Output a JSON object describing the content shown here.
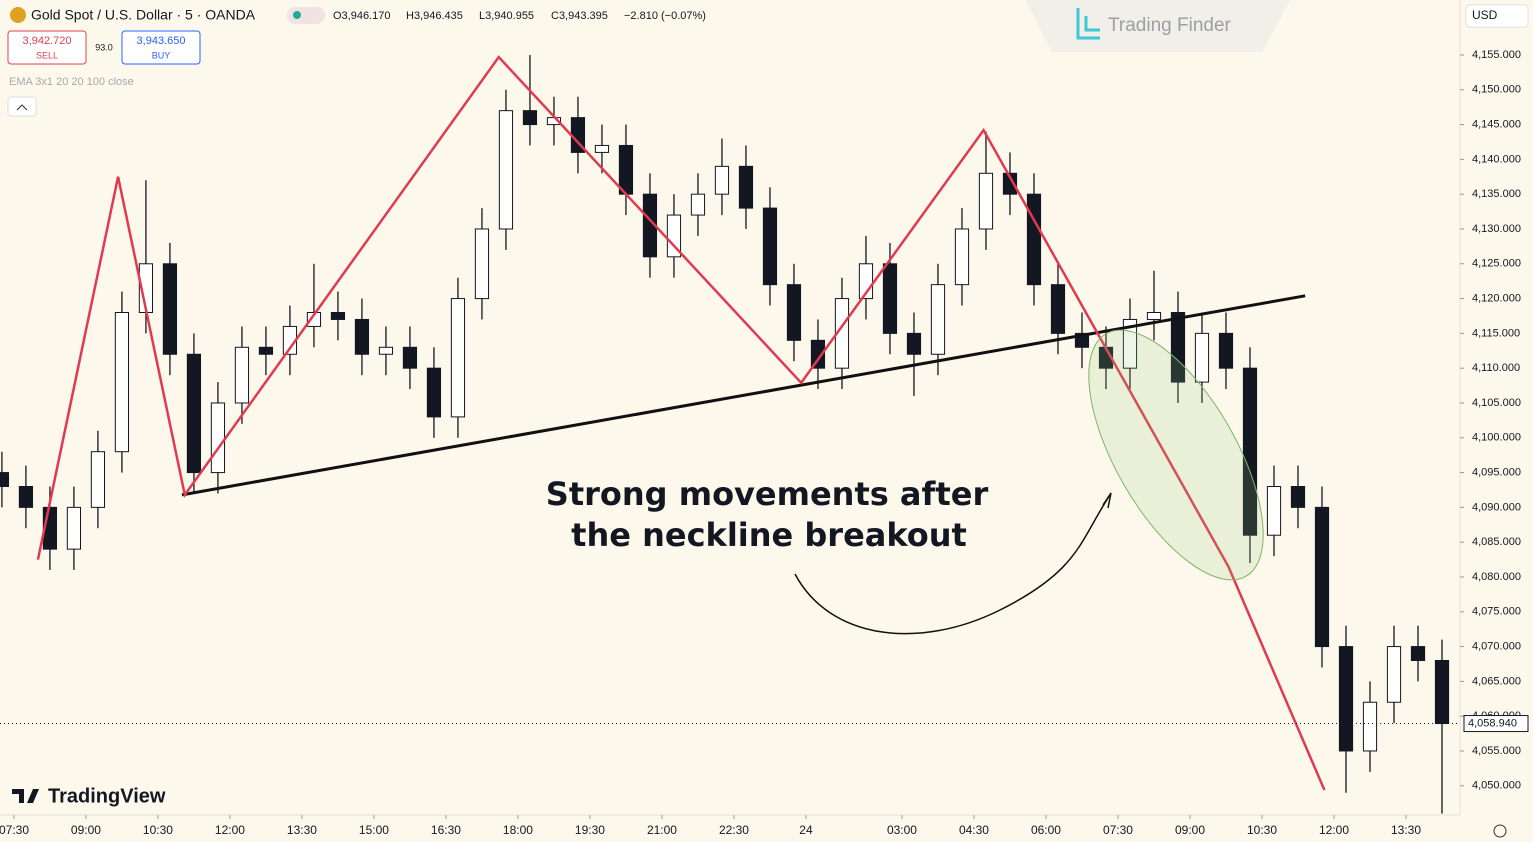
{
  "header": {
    "symbol": "Gold Spot / U.S. Dollar · 5 · OANDA",
    "open": "O3,946.170",
    "high": "H3,946.435",
    "low": "L3,940.955",
    "close": "C3,943.395",
    "change": "−2.810 (−0.07%)",
    "sell_price": "3,942.720",
    "sell": "SELL",
    "spread": "93.0",
    "buy_price": "3,943.650",
    "buy": "BUY",
    "indicator": "EMA 3x1 20 20 100 close",
    "currency": "USD",
    "watermark": "Trading Finder",
    "brand": "TradingView"
  },
  "chart_data": {
    "type": "candlestick",
    "color": "#131722",
    "pattern_color": "#e03a50",
    "neckline_color": "#111111",
    "annotation": [
      "Strong movements after",
      "the neckline breakout"
    ],
    "xlim": [
      -0.29,
      30.125
    ],
    "ylim": [
      4045.8,
      4162.9
    ],
    "xticks": [
      {
        "value": 0,
        "label": "07:30"
      },
      {
        "value": 1.5,
        "label": "09:00"
      },
      {
        "value": 3,
        "label": "10:30"
      },
      {
        "value": 4.5,
        "label": "12:00"
      },
      {
        "value": 6,
        "label": "13:30"
      },
      {
        "value": 7.5,
        "label": "15:00"
      },
      {
        "value": 9,
        "label": "16:30"
      },
      {
        "value": 10.5,
        "label": "18:00"
      },
      {
        "value": 12,
        "label": "19:30"
      },
      {
        "value": 13.5,
        "label": "21:00"
      },
      {
        "value": 15,
        "label": "22:30"
      },
      {
        "value": 16.5,
        "label": "24"
      },
      {
        "value": 18.5,
        "label": "03:00"
      },
      {
        "value": 20,
        "label": "04:30"
      },
      {
        "value": 21.5,
        "label": "06:00"
      },
      {
        "value": 23,
        "label": "07:30"
      },
      {
        "value": 24.5,
        "label": "09:00"
      },
      {
        "value": 26,
        "label": "10:30"
      },
      {
        "value": 27.5,
        "label": "12:00"
      },
      {
        "value": 29,
        "label": "13:30"
      }
    ],
    "yticks": [
      {
        "value": 4050,
        "label": "4,050.000"
      },
      {
        "value": 4055,
        "label": "4,055.000"
      },
      {
        "value": 4060,
        "label": "4,060.000"
      },
      {
        "value": 4065,
        "label": "4,065.000"
      },
      {
        "value": 4070,
        "label": "4,070.000"
      },
      {
        "value": 4075,
        "label": "4,075.000"
      },
      {
        "value": 4080,
        "label": "4,080.000"
      },
      {
        "value": 4085,
        "label": "4,085.000"
      },
      {
        "value": 4090,
        "label": "4,090.000"
      },
      {
        "value": 4095,
        "label": "4,095.000"
      },
      {
        "value": 4100,
        "label": "4,100.000"
      },
      {
        "value": 4105,
        "label": "4,105.000"
      },
      {
        "value": 4110,
        "label": "4,110.000"
      },
      {
        "value": 4115,
        "label": "4,115.000"
      },
      {
        "value": 4120,
        "label": "4,120.000"
      },
      {
        "value": 4125,
        "label": "4,125.000"
      },
      {
        "value": 4130,
        "label": "4,130.000"
      },
      {
        "value": 4135,
        "label": "4,135.000"
      },
      {
        "value": 4140,
        "label": "4,140.000"
      },
      {
        "value": 4145,
        "label": "4,145.000"
      },
      {
        "value": 4150,
        "label": "4,150.000"
      },
      {
        "value": 4155,
        "label": "4,155.000"
      }
    ],
    "last_price": {
      "value": 4058.94,
      "label": "4,058.940"
    },
    "x": [
      -0.25,
      0.25,
      0.75,
      1.25,
      1.75,
      2.25,
      2.75,
      3.25,
      3.75,
      4.25,
      4.75,
      5.25,
      5.75,
      6.25,
      6.75,
      7.25,
      7.75,
      8.25,
      8.75,
      9.25,
      9.75,
      10.25,
      10.75,
      11.25,
      11.75,
      12.25,
      12.75,
      13.25,
      13.75,
      14.25,
      14.75,
      15.25,
      15.75,
      16.25,
      16.75,
      17.25,
      17.75,
      18.25,
      18.75,
      19.25,
      19.75,
      20.25,
      20.75,
      21.25,
      21.75,
      22.25,
      22.75,
      23.25,
      23.75,
      24.25,
      24.75,
      25.25,
      25.75,
      26.25,
      26.75,
      27.25,
      27.75,
      28.25,
      28.75,
      29.25,
      29.75
    ],
    "open": [
      4095,
      4093,
      4090,
      4084,
      4090,
      4098,
      4118,
      4125,
      4112,
      4095,
      4105,
      4113,
      4112,
      4116,
      4118,
      4117,
      4112,
      4113,
      4110,
      4103,
      4120,
      4130,
      4147,
      4145,
      4146,
      4141,
      4142,
      4135,
      4126,
      4132,
      4135,
      4139,
      4133,
      4122,
      4114,
      4110,
      4120,
      4125,
      4115,
      4112,
      4122,
      4130,
      4138,
      4135,
      4122,
      4115,
      4113,
      4110,
      4117,
      4118,
      4108,
      4115,
      4110,
      4086,
      4093,
      4090,
      4070,
      4055,
      4062,
      4070,
      4068
    ],
    "high": [
      4098,
      4096,
      4093,
      4093,
      4101,
      4121,
      4137,
      4128,
      4115,
      4108,
      4116,
      4116,
      4119,
      4125,
      4121,
      4120,
      4116,
      4116,
      4113,
      4123,
      4133,
      4150,
      4155,
      4149,
      4149,
      4145,
      4145,
      4138,
      4135,
      4138,
      4143,
      4142,
      4136,
      4125,
      4117,
      4123,
      4129,
      4128,
      4118,
      4125,
      4133,
      4144,
      4141,
      4138,
      4125,
      4118,
      4116,
      4120,
      4124,
      4121,
      4118,
      4118,
      4113,
      4096,
      4096,
      4093,
      4073,
      4065,
      4073,
      4073,
      4071
    ],
    "low": [
      4090,
      4087,
      4081,
      4081,
      4087,
      4095,
      4115,
      4109,
      4092,
      4092,
      4102,
      4109,
      4109,
      4113,
      4114,
      4109,
      4109,
      4107,
      4100,
      4100,
      4117,
      4127,
      4142,
      4142,
      4138,
      4138,
      4132,
      4123,
      4123,
      4129,
      4132,
      4130,
      4119,
      4111,
      4107,
      4107,
      4117,
      4112,
      4106,
      4109,
      4119,
      4127,
      4132,
      4119,
      4112,
      4110,
      4107,
      4107,
      4114,
      4105,
      4105,
      4107,
      4082,
      4083,
      4087,
      4067,
      4049,
      4052,
      4059,
      4065,
      4046
    ],
    "close": [
      4093,
      4090,
      4084,
      4090,
      4098,
      4118,
      4125,
      4112,
      4095,
      4105,
      4113,
      4112,
      4116,
      4118,
      4117,
      4112,
      4113,
      4110,
      4103,
      4120,
      4130,
      4147,
      4145,
      4146,
      4141,
      4142,
      4135,
      4126,
      4132,
      4135,
      4139,
      4133,
      4122,
      4114,
      4110,
      4120,
      4125,
      4115,
      4112,
      4122,
      4130,
      4138,
      4135,
      4122,
      4115,
      4113,
      4110,
      4117,
      4118,
      4108,
      4115,
      4110,
      4086,
      4093,
      4090,
      4070,
      4055,
      4062,
      4070,
      4068,
      4058.94
    ],
    "pattern": {
      "x": [
        0.5,
        2.17,
        3.56,
        10.1,
        16.4,
        20.2,
        25.3,
        27.3
      ],
      "y": [
        4082.5,
        4137.5,
        4091.8,
        4154.7,
        4107.9,
        4144.2,
        4081.5,
        4049.4
      ]
    },
    "neckline": {
      "x": [
        3.5,
        26.9
      ],
      "y": [
        4091.8,
        4120.4
      ]
    }
  }
}
